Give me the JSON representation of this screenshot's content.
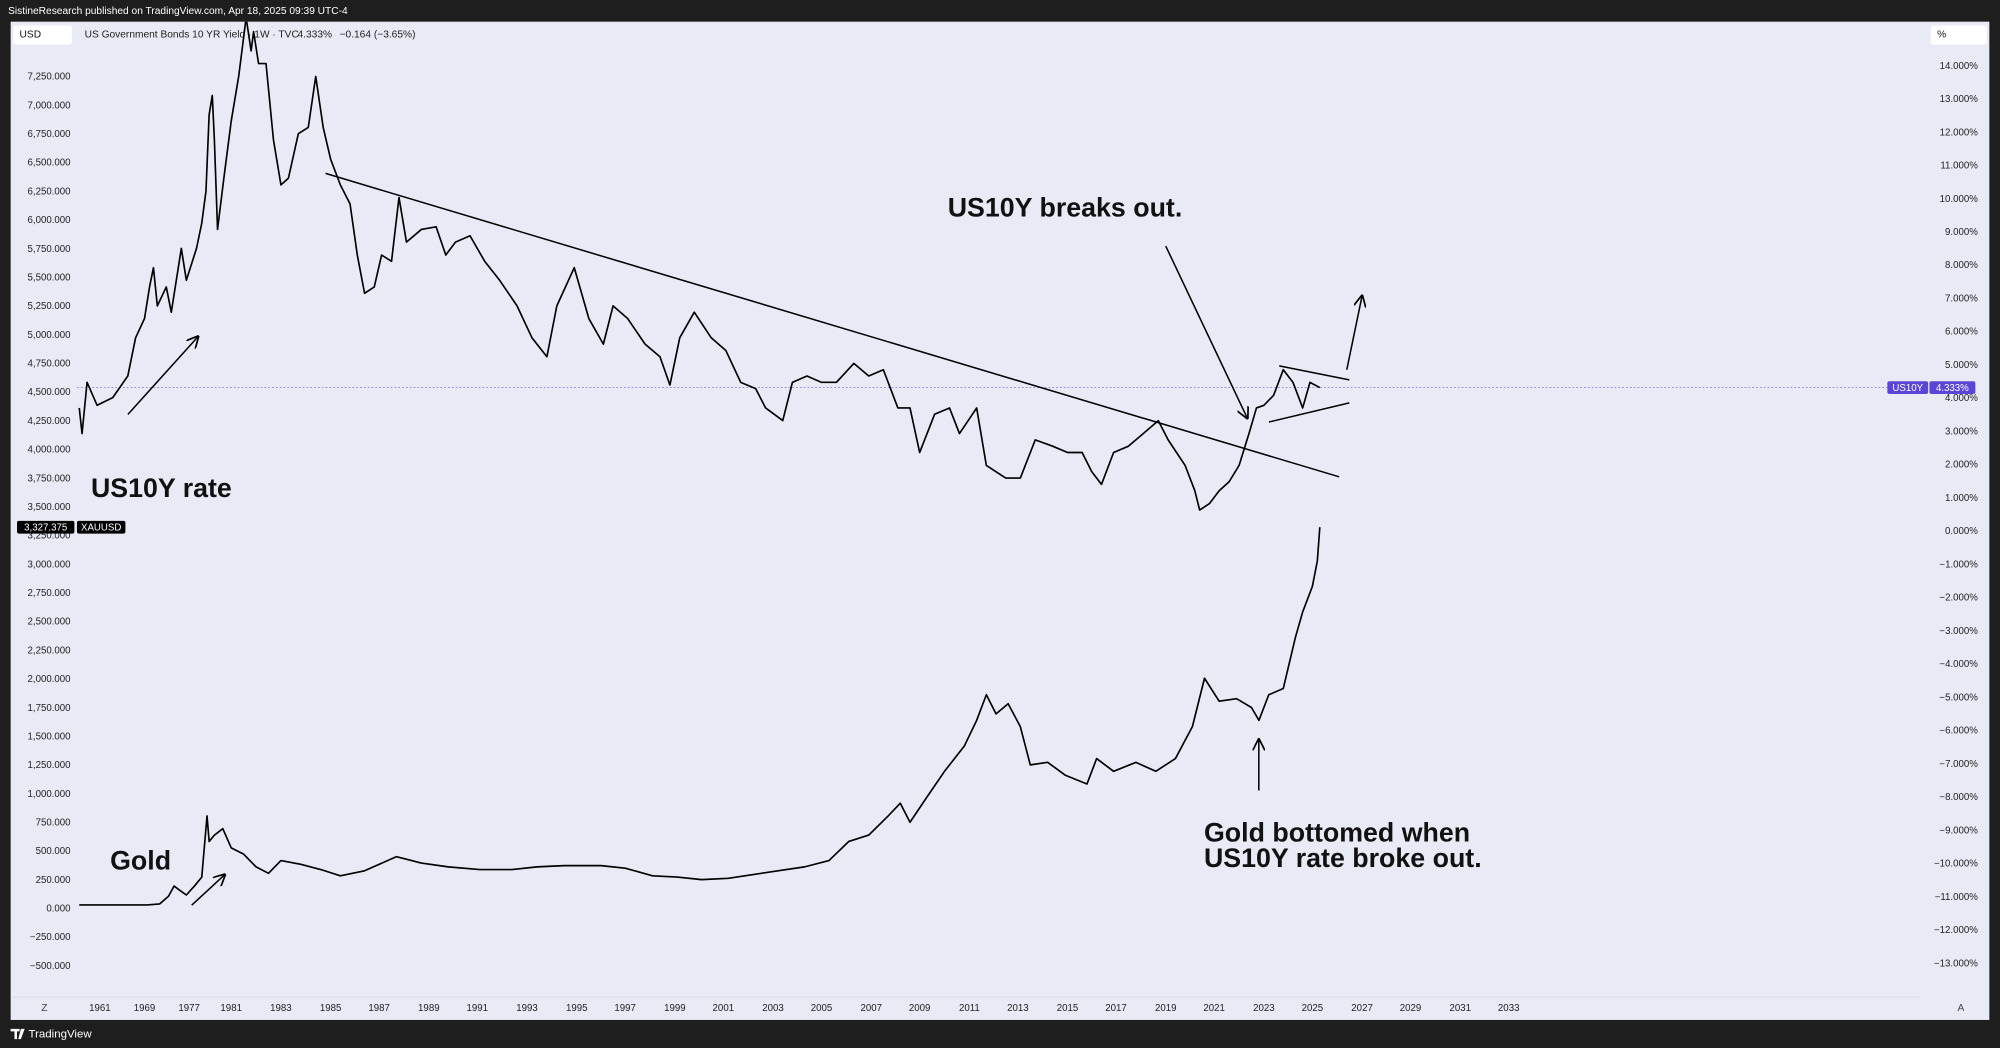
{
  "ui": {
    "publisher": "SistineResearch published on TradingView.com, Apr 18, 2025 09:39 UTC-4",
    "left_unit": "USD",
    "right_unit": "%",
    "footer": "TradingView",
    "scale_left_button": "Z",
    "scale_right_button": "A"
  },
  "chart_data": {
    "type": "line",
    "symbol": "US Government Bonds 10 YR Yield · 1W · TVC",
    "change": "−0.164 (−3.65%)",
    "annotations": [
      "US10Y breaks out.",
      "US10Y rate",
      "Gold",
      "Gold bottomed when",
      "US10Y rate broke out."
    ],
    "grid": false,
    "xlim": [
      1945,
      2050
    ],
    "xticks": [
      1961,
      1969,
      1977,
      1981,
      1983,
      1985,
      1987,
      1989,
      1991,
      1993,
      1995,
      1997,
      1999,
      2001,
      2003,
      2005,
      2007,
      2009,
      2011,
      2013,
      2015,
      2017,
      2019,
      2021,
      2023,
      2025,
      2027,
      2029,
      2031,
      2033
    ],
    "ylim": [
      -767,
      7733
    ],
    "yticks": [
      {
        "value": -500,
        "label": "−500.000"
      },
      {
        "value": -250,
        "label": "−250.000"
      },
      {
        "value": 0,
        "label": "0.000"
      },
      {
        "value": 250,
        "label": "250.000"
      },
      {
        "value": 500,
        "label": "500.000"
      },
      {
        "value": 750,
        "label": "750.000"
      },
      {
        "value": 1000,
        "label": "1,000.000"
      },
      {
        "value": 1250,
        "label": "1,250.000"
      },
      {
        "value": 1500,
        "label": "1,500.000"
      },
      {
        "value": 1750,
        "label": "1,750.000"
      },
      {
        "value": 2000,
        "label": "2,000.000"
      },
      {
        "value": 2250,
        "label": "2,250.000"
      },
      {
        "value": 2500,
        "label": "2,500.000"
      },
      {
        "value": 2750,
        "label": "2,750.000"
      },
      {
        "value": 3000,
        "label": "3,000.000"
      },
      {
        "value": 3250,
        "label": "3,250.000"
      },
      {
        "value": 3500,
        "label": "3,500.000"
      },
      {
        "value": 3750,
        "label": "3,750.000"
      },
      {
        "value": 4000,
        "label": "4,000.000"
      },
      {
        "value": 4250,
        "label": "4,250.000"
      },
      {
        "value": 4500,
        "label": "4,500.000"
      },
      {
        "value": 4750,
        "label": "4,750.000"
      },
      {
        "value": 5000,
        "label": "5,000.000"
      },
      {
        "value": 5250,
        "label": "5,250.000"
      },
      {
        "value": 5500,
        "label": "5,500.000"
      },
      {
        "value": 5750,
        "label": "5,750.000"
      },
      {
        "value": 6000,
        "label": "6,000.000"
      },
      {
        "value": 6250,
        "label": "6,250.000"
      },
      {
        "value": 6500,
        "label": "6,500.000"
      },
      {
        "value": 6750,
        "label": "6,750.000"
      },
      {
        "value": 7000,
        "label": "7,000.000"
      },
      {
        "value": 7250,
        "label": "7,250.000"
      }
    ],
    "y2lim": [
      -14.0,
      15.34
    ],
    "y2ticks": [
      {
        "value": -13,
        "label": "−13.000%"
      },
      {
        "value": -12,
        "label": "−12.000%"
      },
      {
        "value": -11,
        "label": "−11.000%"
      },
      {
        "value": -10,
        "label": "−10.000%"
      },
      {
        "value": -9,
        "label": "−9.000%"
      },
      {
        "value": -8,
        "label": "−8.000%"
      },
      {
        "value": -7,
        "label": "−7.000%"
      },
      {
        "value": -6,
        "label": "−6.000%"
      },
      {
        "value": -5,
        "label": "−5.000%"
      },
      {
        "value": -4,
        "label": "−4.000%"
      },
      {
        "value": -3,
        "label": "−3.000%"
      },
      {
        "value": -2,
        "label": "−2.000%"
      },
      {
        "value": -1,
        "label": "−1.000%"
      },
      {
        "value": 0,
        "label": "0.000%"
      },
      {
        "value": 1,
        "label": "1.000%"
      },
      {
        "value": 2,
        "label": "2.000%"
      },
      {
        "value": 3,
        "label": "3.000%"
      },
      {
        "value": 4,
        "label": "4.000%"
      },
      {
        "value": 5,
        "label": "5.000%"
      },
      {
        "value": 6,
        "label": "6.000%"
      },
      {
        "value": 7,
        "label": "7.000%"
      },
      {
        "value": 8,
        "label": "8.000%"
      },
      {
        "value": 9,
        "label": "9.000%"
      },
      {
        "value": 10,
        "label": "10.000%"
      },
      {
        "value": 11,
        "label": "11.000%"
      },
      {
        "value": 12,
        "label": "12.000%"
      },
      {
        "value": 13,
        "label": "13.000%"
      },
      {
        "value": 14,
        "label": "14.000%"
      }
    ],
    "series": [
      {
        "name": "US10Y",
        "color": "#000000",
        "axis": "y2",
        "badge_color": "#5b45d6",
        "last_value_label": "4.333%",
        "x": [
          1957.3,
          1957.8,
          1958.7,
          1960.5,
          1963.3,
          1966.0,
          1967.4,
          1969.0,
          1969.9,
          1970.6,
          1971.3,
          1972.9,
          1973.8,
          1975.6,
          1976.5,
          1977.7,
          1978.2,
          1978.6,
          1978.9,
          1979.2,
          1979.4,
          1979.7,
          1980.3,
          1981.0,
          1981.3,
          1981.6,
          1981.8,
          1981.9,
          1982.1,
          1982.4,
          1982.7,
          1983.0,
          1983.3,
          1983.7,
          1984.1,
          1984.4,
          1984.7,
          1985.0,
          1985.4,
          1985.8,
          1986.1,
          1986.4,
          1986.8,
          1987.1,
          1987.5,
          1987.8,
          1988.1,
          1988.7,
          1989.3,
          1989.7,
          1990.1,
          1990.7,
          1991.3,
          1991.9,
          1992.6,
          1993.2,
          1993.8,
          1994.2,
          1994.9,
          1995.5,
          1996.1,
          1996.5,
          1997.1,
          1997.8,
          1998.4,
          1998.8,
          1999.2,
          1999.8,
          2000.5,
          2001.1,
          2001.7,
          2002.3,
          2002.7,
          2003.4,
          2003.8,
          2004.4,
          2005.0,
          2005.6,
          2006.3,
          2006.9,
          2007.5,
          2008.1,
          2008.6,
          2009.0,
          2009.6,
          2010.2,
          2010.6,
          2011.3,
          2011.7,
          2012.5,
          2013.1,
          2013.7,
          2014.4,
          2015.0,
          2015.6,
          2016.0,
          2016.4,
          2016.9,
          2017.5,
          2018.1,
          2018.7,
          2019.1,
          2019.8,
          2020.2,
          2020.4,
          2020.8,
          2021.2,
          2021.6,
          2022.0,
          2022.4,
          2022.7,
          2023.0,
          2023.4,
          2023.8,
          2024.2,
          2024.6,
          2024.9,
          2025.3
        ],
        "values": [
          3.72,
          2.95,
          4.49,
          3.8,
          4.03,
          4.68,
          5.83,
          6.41,
          7.36,
          7.94,
          6.79,
          7.36,
          6.6,
          8.52,
          7.56,
          8.52,
          9.28,
          10.24,
          12.54,
          13.12,
          11.78,
          9.09,
          10.63,
          12.35,
          13.69,
          15.46,
          14.46,
          15.04,
          14.08,
          14.08,
          11.78,
          10.43,
          10.63,
          11.97,
          12.16,
          13.69,
          12.16,
          11.2,
          10.43,
          9.86,
          8.32,
          7.17,
          7.36,
          8.32,
          8.13,
          10.05,
          8.71,
          9.09,
          9.17,
          8.32,
          8.71,
          8.9,
          8.13,
          7.56,
          6.79,
          5.83,
          5.26,
          6.79,
          7.94,
          6.41,
          5.64,
          6.79,
          6.41,
          5.64,
          5.26,
          4.41,
          5.83,
          6.6,
          5.83,
          5.45,
          4.49,
          4.3,
          3.72,
          3.34,
          4.49,
          4.68,
          4.49,
          4.49,
          5.06,
          4.68,
          4.87,
          3.72,
          3.72,
          2.38,
          3.53,
          3.72,
          2.95,
          3.72,
          1.99,
          1.61,
          1.61,
          2.76,
          2.57,
          2.38,
          2.38,
          1.8,
          1.42,
          2.38,
          2.57,
          2.95,
          3.34,
          2.76,
          1.99,
          1.23,
          0.65,
          0.84,
          1.23,
          1.5,
          1.99,
          2.95,
          3.72,
          3.8,
          4.1,
          4.87,
          4.49,
          3.72,
          4.49,
          4.333
        ]
      },
      {
        "name": "XAUUSD",
        "color": "#000000",
        "badge_color": "#000000",
        "last_value_label": "3,327.375",
        "x": [
          1957.3,
          1969.5,
          1971.7,
          1973.3,
          1974.3,
          1975.2,
          1976.5,
          1977.5,
          1978.2,
          1978.7,
          1978.9,
          1979.4,
          1980.2,
          1981.0,
          1981.5,
          1982.0,
          1982.5,
          1983.0,
          1983.8,
          1984.6,
          1985.4,
          1986.4,
          1987.7,
          1988.7,
          1989.8,
          1991.1,
          1992.4,
          1993.4,
          1994.5,
          1996.0,
          1997.0,
          1998.1,
          1999.1,
          2000.1,
          2001.2,
          2002.2,
          2003.2,
          2004.3,
          2005.3,
          2006.1,
          2006.9,
          2007.7,
          2008.2,
          2008.6,
          2009.3,
          2010.0,
          2010.8,
          2011.3,
          2011.7,
          2012.1,
          2012.6,
          2013.1,
          2013.5,
          2014.2,
          2014.9,
          2015.8,
          2016.2,
          2016.9,
          2017.8,
          2018.6,
          2019.4,
          2020.1,
          2020.6,
          2021.2,
          2021.9,
          2022.5,
          2022.8,
          2023.2,
          2023.8,
          2024.3,
          2024.6,
          2025.0,
          2025.2,
          2025.3
        ],
        "values": [
          35,
          35,
          44,
          111,
          200,
          167,
          122,
          200,
          278,
          811,
          589,
          644,
          700,
          533,
          478,
          367,
          311,
          422,
          389,
          344,
          289,
          333,
          456,
          400,
          367,
          344,
          344,
          367,
          378,
          378,
          356,
          289,
          278,
          256,
          267,
          300,
          333,
          367,
          422,
          589,
          644,
          811,
          922,
          756,
          978,
          1200,
          1422,
          1644,
          1867,
          1700,
          1789,
          1589,
          1256,
          1278,
          1167,
          1089,
          1311,
          1200,
          1278,
          1200,
          1311,
          1589,
          2011,
          1811,
          1833,
          1756,
          1644,
          1867,
          1922,
          2367,
          2589,
          2811,
          3033,
          3327.375
        ]
      }
    ]
  }
}
